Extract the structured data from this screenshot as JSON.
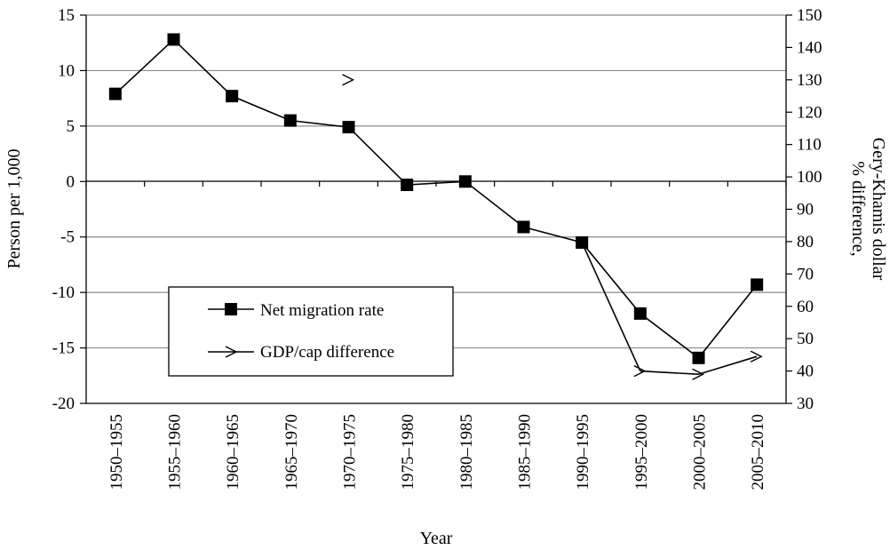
{
  "chart_data": {
    "type": "line",
    "title": "",
    "xlabel": "Year",
    "ylabel_left": "Person per 1,000",
    "ylabel_right": [
      "% difference,",
      "Gery-Khamis dollar"
    ],
    "categories": [
      "1950–1955",
      "1955–1960",
      "1960–1965",
      "1965–1970",
      "1970–1975",
      "1975–1980",
      "1980–1985",
      "1985–1990",
      "1990–1995",
      "1995–2000",
      "2000–2005",
      "2005–2010"
    ],
    "ylim_left": [
      -20,
      15
    ],
    "yticks_left": [
      15,
      10,
      5,
      0,
      -5,
      -10,
      -15,
      -20
    ],
    "ylim_right": [
      30,
      150
    ],
    "yticks_right": [
      150,
      140,
      130,
      120,
      110,
      100,
      90,
      80,
      70,
      60,
      50,
      40,
      30
    ],
    "grid": true,
    "legend_position": "lower-left",
    "series": [
      {
        "name": "Net migration rate",
        "axis": "left",
        "marker": "square",
        "values": [
          7.9,
          12.8,
          7.7,
          5.5,
          4.9,
          -0.3,
          0.0,
          -4.1,
          -5.5,
          -11.9,
          -15.9,
          -9.3
        ]
      },
      {
        "name": "GDP/cap difference",
        "axis": "right",
        "marker": "tick",
        "values": [
          null,
          null,
          null,
          null,
          130,
          null,
          null,
          null,
          null,
          40,
          39,
          44.5
        ]
      }
    ]
  }
}
